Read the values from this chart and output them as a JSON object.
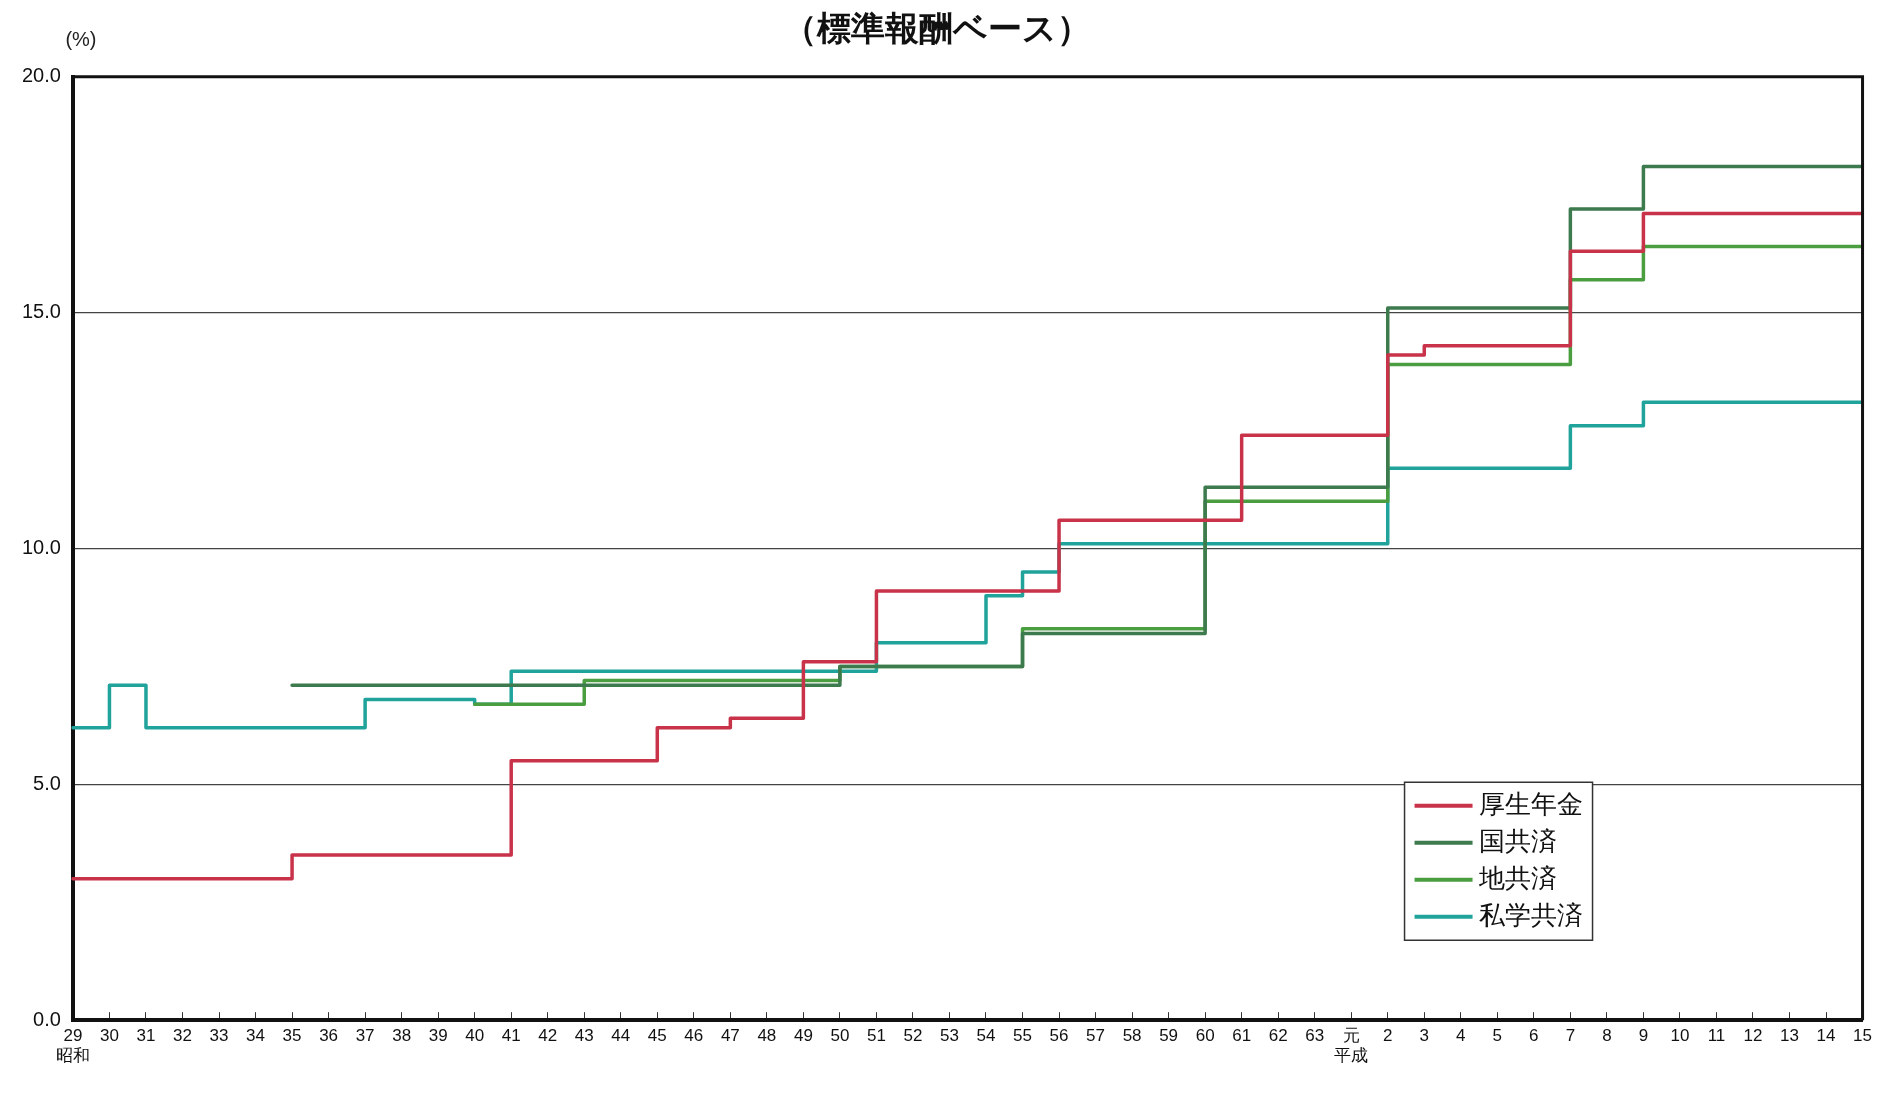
{
  "chart_data": {
    "type": "step",
    "title": "（標準報酬ベース）",
    "ylabel": "(%)",
    "categories": [
      "29\n昭和",
      "30",
      "31",
      "32",
      "33",
      "34",
      "35",
      "36",
      "37",
      "38",
      "39",
      "40",
      "41",
      "42",
      "43",
      "44",
      "45",
      "46",
      "47",
      "48",
      "49",
      "50",
      "51",
      "52",
      "53",
      "54",
      "55",
      "56",
      "57",
      "58",
      "59",
      "60",
      "61",
      "62",
      "63",
      "元平成",
      "2",
      "3",
      "4",
      "5",
      "6",
      "7",
      "8",
      "9",
      "10",
      "11",
      "12",
      "13",
      "14",
      "15"
    ],
    "series": [
      {
        "name": "厚生年金",
        "color": "#c8334a",
        "values": [
          3.0,
          3.0,
          3.0,
          3.0,
          3.0,
          3.0,
          3.5,
          3.5,
          3.5,
          3.5,
          3.5,
          3.5,
          5.5,
          5.5,
          5.5,
          5.5,
          6.2,
          6.2,
          6.4,
          6.4,
          7.6,
          7.6,
          9.1,
          9.1,
          9.1,
          9.1,
          9.1,
          10.6,
          10.6,
          10.6,
          10.6,
          10.6,
          12.4,
          12.4,
          12.4,
          12.4,
          14.1,
          14.3,
          14.3,
          14.3,
          14.3,
          16.3,
          16.3,
          17.1,
          17.1,
          17.1,
          17.1,
          17.1,
          17.1,
          17.1
        ]
      },
      {
        "name": "国共済",
        "color": "#3d7a4e",
        "values": [
          null,
          null,
          null,
          null,
          null,
          null,
          7.1,
          7.1,
          7.1,
          7.1,
          7.1,
          7.1,
          7.1,
          7.1,
          7.1,
          7.1,
          7.1,
          7.1,
          7.1,
          7.1,
          7.1,
          7.5,
          7.5,
          7.5,
          7.5,
          7.5,
          8.2,
          8.2,
          8.2,
          8.2,
          8.2,
          11.3,
          11.3,
          11.3,
          11.3,
          11.3,
          15.1,
          15.1,
          15.1,
          15.1,
          15.1,
          17.2,
          17.2,
          18.1,
          18.1,
          18.1,
          18.1,
          18.1,
          18.1,
          18.1
        ]
      },
      {
        "name": "地共済",
        "color": "#4a9e40",
        "values": [
          null,
          null,
          null,
          null,
          null,
          null,
          null,
          null,
          null,
          null,
          null,
          6.7,
          6.7,
          6.7,
          7.2,
          7.2,
          7.2,
          7.2,
          7.2,
          7.2,
          7.2,
          7.5,
          7.5,
          7.5,
          7.5,
          7.5,
          8.3,
          8.3,
          8.3,
          8.3,
          8.3,
          11.0,
          11.0,
          11.0,
          11.0,
          11.0,
          13.9,
          13.9,
          13.9,
          13.9,
          13.9,
          15.7,
          15.7,
          16.4,
          16.4,
          16.4,
          16.4,
          16.4,
          16.4,
          16.4
        ]
      },
      {
        "name": "私学共済",
        "color": "#1fa39a",
        "values": [
          6.2,
          7.1,
          6.2,
          6.2,
          6.2,
          6.2,
          6.2,
          6.2,
          6.8,
          6.8,
          6.8,
          6.7,
          7.4,
          7.4,
          7.4,
          7.4,
          7.4,
          7.4,
          7.4,
          7.4,
          7.4,
          7.4,
          8.0,
          8.0,
          8.0,
          9.0,
          9.5,
          10.1,
          10.1,
          10.1,
          10.1,
          10.1,
          10.1,
          10.1,
          10.1,
          10.1,
          11.7,
          11.7,
          11.7,
          11.7,
          11.7,
          12.6,
          12.6,
          13.1,
          13.1,
          13.1,
          13.1,
          13.1,
          13.1,
          13.1
        ]
      }
    ],
    "ylim": [
      0,
      20
    ],
    "yticks": [
      {
        "value": 0,
        "label": "0.0"
      },
      {
        "value": 5,
        "label": "5.0"
      },
      {
        "value": 10,
        "label": "10.0"
      },
      {
        "value": 15,
        "label": "15.0"
      },
      {
        "value": 20,
        "label": "20.0"
      }
    ],
    "grid": "y",
    "legend": "bottom right"
  }
}
